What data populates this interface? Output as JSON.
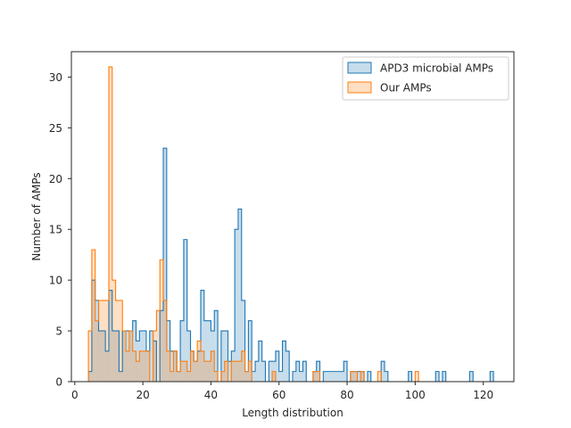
{
  "chart_data": {
    "type": "histogram",
    "title": "",
    "xlabel": "Length distribution",
    "ylabel": "Number of AMPs",
    "xlim": [
      -1,
      129
    ],
    "ylim": [
      0,
      32.5
    ],
    "xticks": [
      0,
      20,
      40,
      60,
      80,
      100,
      120
    ],
    "yticks": [
      0,
      5,
      10,
      15,
      20,
      25,
      30
    ],
    "grid": false,
    "legend_position": "top-right",
    "bin_start": 4,
    "bin_width": 1,
    "series": [
      {
        "name": "APD3 microbial AMPs",
        "color": "#1f77b4",
        "values": [
          1,
          10,
          8,
          5,
          5,
          3,
          9,
          5,
          5,
          1,
          5,
          5,
          5,
          6,
          4,
          5,
          5,
          3,
          5,
          4,
          0,
          7,
          23,
          6,
          3,
          3,
          1,
          6,
          14,
          5,
          3,
          2,
          3,
          9,
          6,
          6,
          5,
          7,
          0,
          5,
          5,
          2,
          3,
          15,
          17,
          8,
          1,
          6,
          1,
          2,
          4,
          2,
          0,
          2,
          2,
          3,
          1,
          4,
          3,
          0,
          1,
          2,
          1,
          2,
          0,
          0,
          1,
          2,
          0,
          1,
          1,
          1,
          1,
          1,
          1,
          2,
          0,
          1,
          1,
          1,
          1,
          0,
          1,
          0,
          0,
          0,
          2,
          1,
          0,
          0,
          0,
          0,
          0,
          0,
          1,
          0,
          0,
          0,
          0,
          0,
          0,
          0,
          1,
          0,
          1,
          0,
          0,
          0,
          0,
          0,
          0,
          0,
          1,
          0,
          0,
          0,
          0,
          0,
          1
        ],
        "bin_start": 4
      },
      {
        "name": "Our AMPs",
        "color": "#ff7f0e",
        "values": [
          5,
          13,
          6,
          8,
          8,
          8,
          31,
          10,
          8,
          8,
          5,
          3,
          5,
          3,
          2,
          3,
          3,
          3,
          0,
          5,
          7,
          12,
          8,
          3,
          1,
          3,
          1,
          2,
          2,
          1,
          3,
          2,
          4,
          3,
          2,
          2,
          3,
          1,
          0,
          1,
          2,
          0,
          2,
          2,
          2,
          3,
          1,
          2,
          0,
          0,
          0,
          0,
          0,
          0,
          1,
          0,
          0,
          0,
          0,
          0,
          0,
          0,
          0,
          0,
          0,
          0,
          1,
          1,
          0,
          0,
          0,
          0,
          0,
          0,
          0,
          0,
          0,
          1,
          1,
          0,
          1,
          0,
          0,
          0,
          0,
          1,
          0,
          0,
          0,
          0,
          0,
          0,
          0,
          0,
          0,
          0,
          1
        ],
        "bin_start": 4
      }
    ]
  }
}
